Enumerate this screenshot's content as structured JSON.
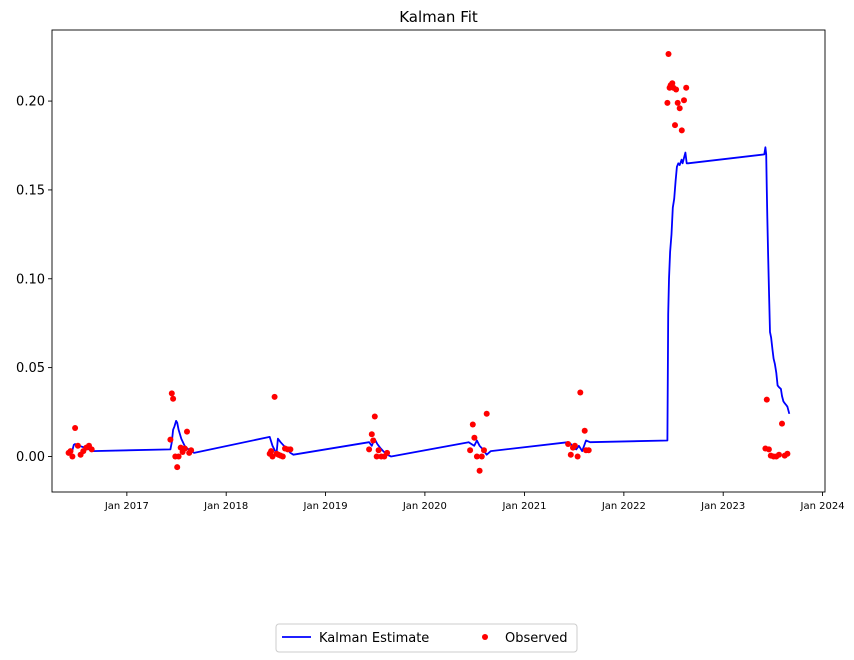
{
  "chart_data": {
    "type": "line",
    "title": "Kalman Fit",
    "xlabel": "",
    "ylabel": "",
    "x_axis": {
      "type": "date",
      "range": [
        "2016-04-01",
        "2024-01-10"
      ]
    },
    "ylim": [
      -0.02,
      0.24
    ],
    "y_ticks": [
      0.0,
      0.05,
      0.1,
      0.15,
      0.2
    ],
    "y_tick_labels": [
      "0.00",
      "0.05",
      "0.10",
      "0.15",
      "0.20"
    ],
    "x_ticks": [
      "2017-01-01",
      "2018-01-01",
      "2019-01-01",
      "2020-01-01",
      "2021-01-01",
      "2022-01-01",
      "2023-01-01",
      "2024-01-01"
    ],
    "x_tick_labels": [
      "Jan 2017",
      "Jan 2018",
      "Jan 2019",
      "Jan 2020",
      "Jan 2021",
      "Jan 2022",
      "Jan 2023",
      "Jan 2024"
    ],
    "grid": false,
    "legend": {
      "placement": "bottom-center",
      "columns": 2
    },
    "colors": {
      "estimate": "#0000ff",
      "observed": "#ff0000"
    },
    "series": [
      {
        "name": "Kalman Estimate",
        "kind": "line",
        "x": [
          "2016-06-01",
          "2016-06-10",
          "2016-06-15",
          "2016-06-20",
          "2016-06-25",
          "2016-07-01",
          "2016-07-10",
          "2016-07-20",
          "2016-08-01",
          "2016-08-15",
          "2016-08-25",
          "2017-06-10",
          "2017-06-15",
          "2017-06-20",
          "2017-06-25",
          "2017-07-01",
          "2017-07-05",
          "2017-07-10",
          "2017-07-20",
          "2017-08-01",
          "2017-08-15",
          "2017-08-25",
          "2017-09-05",
          "2018-06-10",
          "2018-06-20",
          "2018-06-30",
          "2018-07-05",
          "2018-07-10",
          "2018-07-20",
          "2018-08-01",
          "2018-08-15",
          "2018-08-25",
          "2018-09-05",
          "2019-06-10",
          "2019-06-20",
          "2019-06-30",
          "2019-07-10",
          "2019-07-20",
          "2019-08-01",
          "2019-08-15",
          "2019-08-30",
          "2020-06-10",
          "2020-06-20",
          "2020-06-30",
          "2020-07-10",
          "2020-07-20",
          "2020-08-01",
          "2020-08-15",
          "2020-08-30",
          "2021-06-10",
          "2021-06-20",
          "2021-06-30",
          "2021-07-10",
          "2021-07-20",
          "2021-08-01",
          "2021-08-15",
          "2021-08-30",
          "2022-06-10",
          "2022-06-13",
          "2022-06-16",
          "2022-06-20",
          "2022-06-25",
          "2022-06-30",
          "2022-07-05",
          "2022-07-10",
          "2022-07-15",
          "2022-07-20",
          "2022-07-25",
          "2022-08-01",
          "2022-08-05",
          "2022-08-10",
          "2022-08-15",
          "2022-08-20",
          "2022-08-25",
          "2023-06-01",
          "2023-06-05",
          "2023-06-08",
          "2023-06-10",
          "2023-06-12",
          "2023-06-15",
          "2023-06-18",
          "2023-06-22",
          "2023-06-26",
          "2023-07-01",
          "2023-07-05",
          "2023-07-10",
          "2023-07-15",
          "2023-07-20",
          "2023-07-25",
          "2023-08-01",
          "2023-08-05",
          "2023-08-10",
          "2023-08-15",
          "2023-08-20",
          "2023-08-25",
          "2023-09-01"
        ],
        "y": [
          0.003,
          0.003,
          0.0035,
          0.0065,
          0.007,
          0.0065,
          0.006,
          0.0055,
          0.005,
          0.004,
          0.003,
          0.004,
          0.008,
          0.015,
          0.017,
          0.02,
          0.019,
          0.015,
          0.01,
          0.006,
          0.004,
          0.003,
          0.002,
          0.011,
          0.006,
          0.003,
          0.002,
          0.01,
          0.008,
          0.006,
          0.004,
          0.002,
          0.001,
          0.008,
          0.006,
          0.01,
          0.007,
          0.005,
          0.003,
          0.001,
          0.0,
          0.008,
          0.007,
          0.006,
          0.009,
          0.006,
          0.004,
          0.001,
          0.003,
          0.008,
          0.007,
          0.005,
          0.004,
          0.006,
          0.003,
          0.009,
          0.008,
          0.009,
          0.08,
          0.1,
          0.115,
          0.125,
          0.14,
          0.145,
          0.155,
          0.163,
          0.165,
          0.164,
          0.167,
          0.165,
          0.168,
          0.171,
          0.165,
          0.165,
          0.17,
          0.174,
          0.17,
          0.15,
          0.135,
          0.114,
          0.095,
          0.07,
          0.067,
          0.06,
          0.055,
          0.052,
          0.047,
          0.04,
          0.039,
          0.038,
          0.034,
          0.031,
          0.03,
          0.029,
          0.028,
          0.024
        ]
      },
      {
        "name": "Observed",
        "kind": "scatter",
        "x": [
          "2016-06-01",
          "2016-06-08",
          "2016-06-15",
          "2016-06-25",
          "2016-07-05",
          "2016-07-15",
          "2016-07-25",
          "2016-08-05",
          "2016-08-15",
          "2016-08-25",
          "2017-06-10",
          "2017-06-15",
          "2017-06-20",
          "2017-06-28",
          "2017-07-05",
          "2017-07-10",
          "2017-07-18",
          "2017-07-25",
          "2017-08-02",
          "2017-08-10",
          "2017-08-18",
          "2017-08-25",
          "2018-06-10",
          "2018-06-15",
          "2018-06-20",
          "2018-06-28",
          "2018-07-05",
          "2018-07-12",
          "2018-07-20",
          "2018-07-28",
          "2018-08-05",
          "2018-08-15",
          "2018-08-25",
          "2019-06-10",
          "2019-06-20",
          "2019-06-25",
          "2019-07-01",
          "2019-07-08",
          "2019-07-15",
          "2019-07-25",
          "2019-08-05",
          "2019-08-15",
          "2020-06-15",
          "2020-06-25",
          "2020-07-01",
          "2020-07-10",
          "2020-07-20",
          "2020-07-28",
          "2020-08-05",
          "2020-08-15",
          "2021-06-10",
          "2021-06-20",
          "2021-06-28",
          "2021-07-05",
          "2021-07-15",
          "2021-07-25",
          "2021-08-10",
          "2021-08-15",
          "2021-08-25",
          "2022-06-10",
          "2022-06-14",
          "2022-06-18",
          "2022-06-22",
          "2022-06-28",
          "2022-07-02",
          "2022-07-08",
          "2022-07-12",
          "2022-07-18",
          "2022-07-25",
          "2022-08-02",
          "2022-08-10",
          "2022-08-18",
          "2023-06-05",
          "2023-06-10",
          "2023-06-18",
          "2023-06-25",
          "2023-07-05",
          "2023-07-15",
          "2023-07-25",
          "2023-08-05",
          "2023-08-15",
          "2023-08-25"
        ],
        "y": [
          0.002,
          0.003,
          0.0,
          0.016,
          0.006,
          0.001,
          0.003,
          0.005,
          0.006,
          0.004,
          0.0095,
          0.0355,
          0.0325,
          0.0,
          -0.006,
          0.0,
          0.005,
          0.0025,
          0.0045,
          0.014,
          0.002,
          0.0035,
          0.0015,
          0.003,
          0.0,
          0.0335,
          0.0015,
          0.001,
          0.0005,
          0.0,
          0.0045,
          0.004,
          0.004,
          0.004,
          0.0125,
          0.009,
          0.0225,
          0.0,
          0.0035,
          0.0,
          0.0,
          0.002,
          0.0035,
          0.018,
          0.0105,
          0.0,
          -0.008,
          0.0,
          0.0035,
          0.024,
          0.007,
          0.001,
          0.005,
          0.006,
          0.0,
          0.036,
          0.0145,
          0.0035,
          0.0035,
          0.199,
          0.2265,
          0.2075,
          0.209,
          0.21,
          0.2075,
          0.1865,
          0.2065,
          0.199,
          0.196,
          0.1835,
          0.2005,
          0.2075,
          0.0045,
          0.032,
          0.004,
          0.0005,
          0.0,
          0.0,
          0.001,
          0.0185,
          0.0005,
          0.0015
        ]
      }
    ]
  }
}
